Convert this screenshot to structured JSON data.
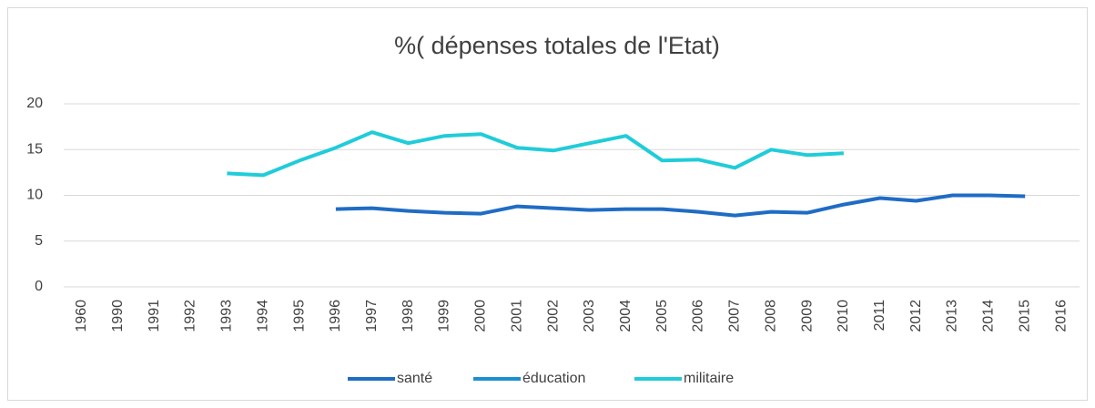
{
  "chart_data": {
    "type": "line",
    "title": "%( dépenses totales de l'Etat)",
    "categories": [
      "1960",
      "1990",
      "1991",
      "1992",
      "1993",
      "1994",
      "1995",
      "1996",
      "1997",
      "1998",
      "1999",
      "2000",
      "2001",
      "2002",
      "2003",
      "2004",
      "2005",
      "2006",
      "2007",
      "2008",
      "2009",
      "2010",
      "2011",
      "2012",
      "2013",
      "2014",
      "2015",
      "2016"
    ],
    "series": [
      {
        "name": "santé",
        "color": "#1f6cc4",
        "values": [
          null,
          null,
          null,
          null,
          null,
          null,
          null,
          8.5,
          8.6,
          8.3,
          8.1,
          8.0,
          8.8,
          8.6,
          8.4,
          8.5,
          8.5,
          8.2,
          7.8,
          8.2,
          8.1,
          9.0,
          9.7,
          9.4,
          10.0,
          10.0,
          9.9,
          null
        ]
      },
      {
        "name": "éducation",
        "color": "#1c8fd2",
        "values": [
          null,
          null,
          null,
          null,
          null,
          null,
          null,
          null,
          null,
          null,
          null,
          null,
          null,
          null,
          null,
          null,
          null,
          null,
          null,
          null,
          null,
          null,
          null,
          null,
          null,
          null,
          null,
          null
        ]
      },
      {
        "name": "militaire",
        "color": "#20ccd9",
        "values": [
          null,
          null,
          null,
          null,
          12.4,
          12.2,
          13.8,
          15.2,
          16.9,
          15.7,
          16.5,
          16.7,
          15.2,
          14.9,
          15.7,
          16.5,
          13.8,
          13.9,
          13.0,
          15.0,
          14.4,
          14.6,
          null,
          null,
          null,
          null,
          null,
          null
        ]
      }
    ],
    "ylim": [
      0,
      20
    ],
    "yticks": [
      0,
      5,
      10,
      15,
      20
    ],
    "grid": true,
    "legend": "bottom"
  }
}
